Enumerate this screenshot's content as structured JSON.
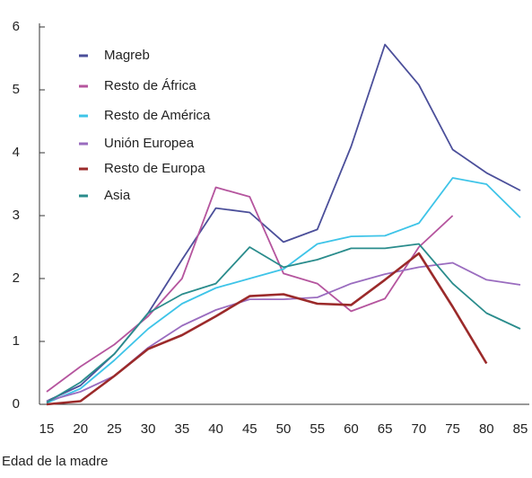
{
  "chart_data": {
    "type": "line",
    "x_label": "Edad de la madre",
    "x": [
      15,
      20,
      25,
      30,
      35,
      40,
      45,
      50,
      55,
      60,
      65,
      70,
      75,
      80,
      85
    ],
    "xlim": [
      15,
      85
    ],
    "xticks": [
      15,
      20,
      25,
      30,
      35,
      40,
      45,
      50,
      55,
      60,
      65,
      70,
      75,
      80,
      85
    ],
    "ylim": [
      0,
      6
    ],
    "yticks": [
      0,
      1,
      2,
      3,
      4,
      5,
      6
    ],
    "legend": "top-left",
    "series": [
      {
        "name": "Magreb",
        "color": "#4b4f9a",
        "values": [
          0.05,
          0.3,
          0.8,
          1.45,
          2.3,
          3.12,
          3.05,
          2.58,
          2.78,
          4.1,
          5.72,
          5.08,
          4.05,
          3.68,
          3.4
        ]
      },
      {
        "name": "Resto de África",
        "color": "#b5559e",
        "values": [
          0.2,
          0.6,
          0.95,
          1.4,
          2.0,
          3.45,
          3.3,
          2.08,
          1.92,
          1.48,
          1.68,
          2.5,
          3.0,
          null,
          null
        ]
      },
      {
        "name": "Resto de América",
        "color": "#3ec4e8",
        "values": [
          0.02,
          0.25,
          0.7,
          1.2,
          1.6,
          1.85,
          2.0,
          2.15,
          2.55,
          2.67,
          2.68,
          2.88,
          3.6,
          3.5,
          2.97
        ]
      },
      {
        "name": "Unión Europea",
        "color": "#9a6cbf",
        "values": [
          0.05,
          0.2,
          0.45,
          0.9,
          1.25,
          1.5,
          1.67,
          1.67,
          1.7,
          1.92,
          2.07,
          2.18,
          2.25,
          1.98,
          1.9
        ]
      },
      {
        "name": "Resto de Europa",
        "color": "#9b2a2a",
        "values": [
          0,
          0.05,
          0.45,
          0.88,
          1.1,
          1.4,
          1.72,
          1.75,
          1.6,
          1.58,
          1.98,
          2.4,
          1.55,
          0.65,
          null
        ]
      },
      {
        "name": "Asia",
        "color": "#2a8c8c",
        "values": [
          0.03,
          0.35,
          0.8,
          1.45,
          1.75,
          1.92,
          2.5,
          2.18,
          2.3,
          2.48,
          2.48,
          2.55,
          1.92,
          1.45,
          1.2
        ]
      }
    ]
  }
}
